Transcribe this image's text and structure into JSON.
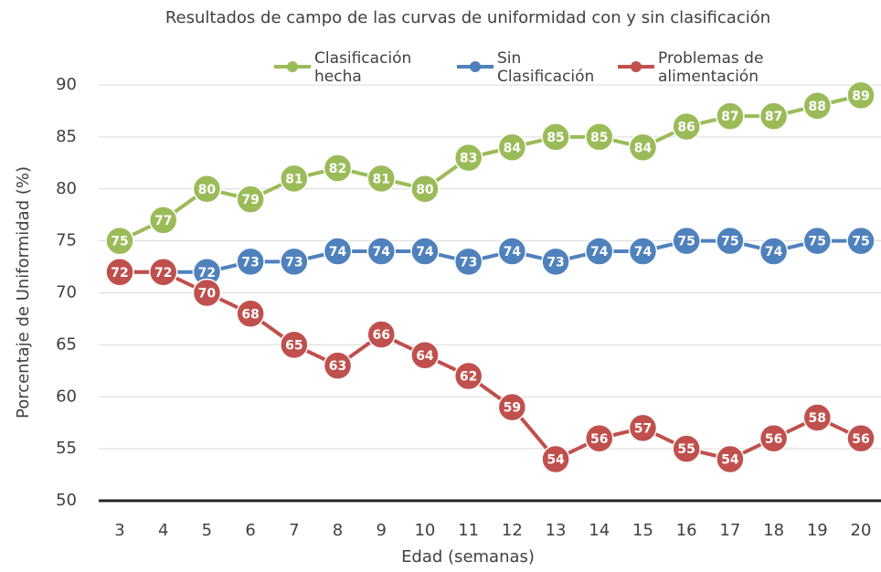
{
  "chart_data": {
    "type": "line",
    "title": "Resultados de campo de las curvas de uniformidad con y sin clasificación",
    "x_label": "Edad (semanas)",
    "y_label": "Porcentaje de Uniformidad (%)",
    "categories": [
      3,
      4,
      5,
      6,
      7,
      8,
      9,
      10,
      11,
      12,
      13,
      14,
      15,
      16,
      17,
      18,
      19,
      20
    ],
    "series": [
      {
        "name": "Clasificación hecha",
        "color": "#9bbb59",
        "values": [
          75,
          77,
          80,
          79,
          81,
          82,
          81,
          80,
          83,
          84,
          85,
          85,
          84,
          86,
          87,
          87,
          88,
          89
        ]
      },
      {
        "name": "Sin Clasificación",
        "color": "#4f81bd",
        "values": [
          72,
          72,
          72,
          73,
          73,
          74,
          74,
          74,
          73,
          74,
          73,
          74,
          74,
          75,
          75,
          74,
          75,
          75
        ]
      },
      {
        "name": "Problemas de alimentación",
        "color": "#c0504d",
        "values": [
          72,
          72,
          70,
          68,
          65,
          63,
          66,
          64,
          62,
          59,
          54,
          56,
          57,
          55,
          54,
          56,
          58,
          56
        ]
      }
    ],
    "ylim": [
      50,
      90
    ],
    "yticks": [
      50,
      55,
      60,
      65,
      70,
      75,
      80,
      85,
      90
    ],
    "grid": true,
    "legend": "top"
  }
}
